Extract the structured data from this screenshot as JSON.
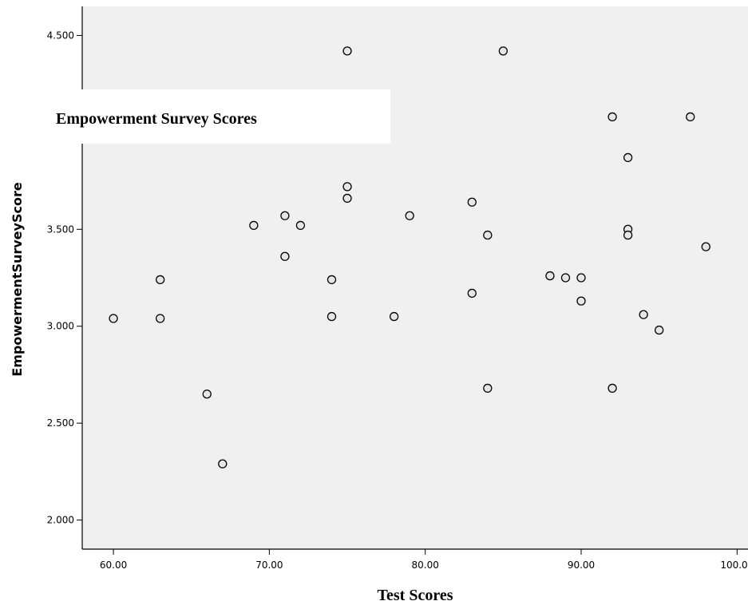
{
  "chart_data": {
    "type": "scatter",
    "xlabel": "Test Scores",
    "ylabel": "EmpowermentSurveyScore",
    "annotation": "Empowerment Survey Scores",
    "xlim": [
      58,
      100.7
    ],
    "ylim": [
      1.85,
      4.65
    ],
    "xticks": [
      "60.00",
      "70.00",
      "80.00",
      "90.00",
      "100.00"
    ],
    "xtick_values": [
      60,
      70,
      80,
      90,
      100
    ],
    "yticks": [
      "2.000",
      "2.500",
      "3.000",
      "3.500",
      "4.500"
    ],
    "ytick_values": [
      2.0,
      2.5,
      3.0,
      3.5,
      4.5
    ],
    "grid": false,
    "colors": {
      "plot_bg": "#f0f0f0",
      "marker_fill": "#e6e6e6",
      "marker_edge": "#000000"
    },
    "points": [
      {
        "x": 60,
        "y": 3.04
      },
      {
        "x": 63,
        "y": 3.24
      },
      {
        "x": 63,
        "y": 3.04
      },
      {
        "x": 66,
        "y": 2.65
      },
      {
        "x": 67,
        "y": 2.29
      },
      {
        "x": 69,
        "y": 3.52
      },
      {
        "x": 71,
        "y": 3.57
      },
      {
        "x": 71,
        "y": 3.36
      },
      {
        "x": 72,
        "y": 3.52
      },
      {
        "x": 74,
        "y": 3.24
      },
      {
        "x": 74,
        "y": 3.05
      },
      {
        "x": 75,
        "y": 4.42
      },
      {
        "x": 75,
        "y": 3.72
      },
      {
        "x": 75,
        "y": 3.66
      },
      {
        "x": 78,
        "y": 3.05
      },
      {
        "x": 79,
        "y": 3.57
      },
      {
        "x": 83,
        "y": 3.64
      },
      {
        "x": 83,
        "y": 3.17
      },
      {
        "x": 84,
        "y": 3.47
      },
      {
        "x": 84,
        "y": 2.68
      },
      {
        "x": 85,
        "y": 4.42
      },
      {
        "x": 88,
        "y": 3.26
      },
      {
        "x": 89,
        "y": 3.25
      },
      {
        "x": 90,
        "y": 3.25
      },
      {
        "x": 90,
        "y": 3.13
      },
      {
        "x": 92,
        "y": 4.08
      },
      {
        "x": 92,
        "y": 2.68
      },
      {
        "x": 93,
        "y": 3.87
      },
      {
        "x": 93,
        "y": 3.5
      },
      {
        "x": 93,
        "y": 3.47
      },
      {
        "x": 94,
        "y": 3.06
      },
      {
        "x": 95,
        "y": 2.98
      },
      {
        "x": 97,
        "y": 4.08
      },
      {
        "x": 98,
        "y": 3.41
      }
    ]
  }
}
